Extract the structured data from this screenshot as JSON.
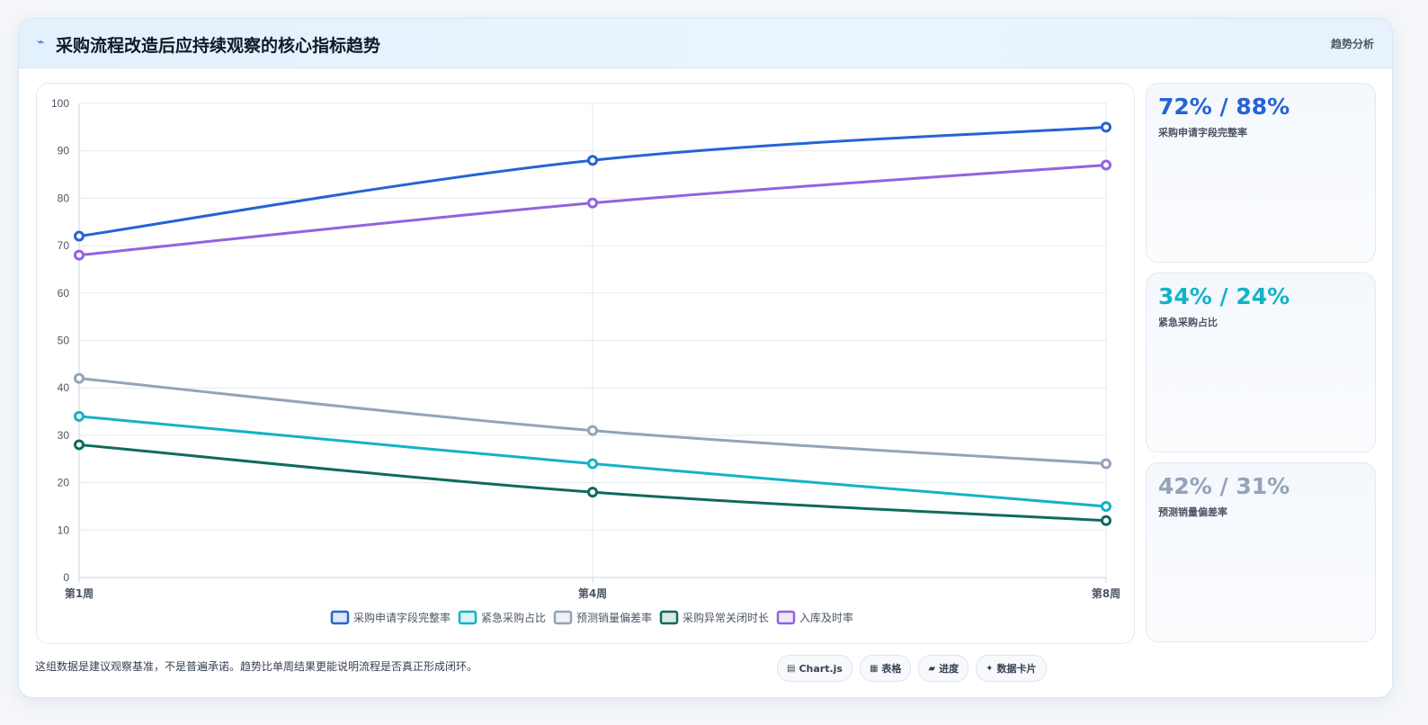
{
  "header": {
    "icon": "lightning-icon",
    "title": "采购流程改造后应持续观察的核心指标趋势",
    "tag": "趋势分析"
  },
  "stats": [
    {
      "value": "72% / 88%",
      "label": "采购申请字段完整率",
      "color": "#2563d6"
    },
    {
      "value": "34% / 24%",
      "label": "紧急采购占比",
      "color": "#13b3c7"
    },
    {
      "value": "42% / 31%",
      "label": "预测销量偏差率",
      "color": "#94a3b8"
    }
  ],
  "footer": {
    "note": "这组数据是建议观察基准，不是普遍承诺。趋势比单周结果更能说明流程是否真正形成闭环。",
    "pills": [
      {
        "icon": "chart-icon",
        "glyph": "▤",
        "label": "Chart.js"
      },
      {
        "icon": "table-icon",
        "glyph": "▦",
        "label": "表格"
      },
      {
        "icon": "progress-icon",
        "glyph": "▰",
        "label": "进度"
      },
      {
        "icon": "card-icon",
        "glyph": "✦",
        "label": "数据卡片"
      }
    ]
  },
  "chart_data": {
    "type": "line",
    "categories": [
      "第1周",
      "第4周",
      "第8周"
    ],
    "ylim": [
      0,
      100
    ],
    "yticks": [
      0,
      10,
      20,
      30,
      40,
      50,
      60,
      70,
      80,
      90,
      100
    ],
    "grid": true,
    "legend_position": "bottom",
    "series": [
      {
        "name": "采购申请字段完整率",
        "values": [
          72,
          88,
          95
        ],
        "color": "#2563d6"
      },
      {
        "name": "紧急采购占比",
        "values": [
          34,
          24,
          15
        ],
        "color": "#13b3c7"
      },
      {
        "name": "预测销量偏差率",
        "values": [
          42,
          31,
          24
        ],
        "color": "#94a3b8"
      },
      {
        "name": "采购异常关闭时长",
        "values": [
          28,
          18,
          12
        ],
        "color": "#0f6b5c"
      },
      {
        "name": "入库及时率",
        "values": [
          68,
          79,
          87
        ],
        "color": "#9462e0"
      }
    ]
  }
}
